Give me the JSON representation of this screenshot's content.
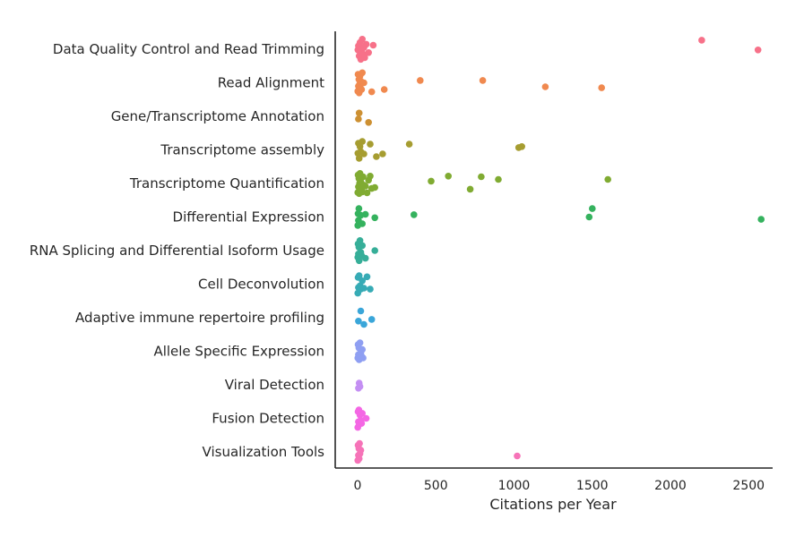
{
  "chart_data": {
    "type": "scatter",
    "title": "",
    "xlabel": "Citations per Year",
    "ylabel": "",
    "xlim": [
      -150,
      2750
    ],
    "xticks": [
      0,
      500,
      1000,
      1500,
      2000,
      2500
    ],
    "xtick_labels": [
      "0",
      "500",
      "1000",
      "1500",
      "2000",
      "2500"
    ],
    "grid": false,
    "legend": "none",
    "categories": [
      "Data Quality Control and Read Trimming",
      "Read Alignment",
      "Gene/Transcriptome Annotation",
      "Transcriptome assembly",
      "Transcriptome Quantification",
      "Differential Expression",
      "RNA Splicing and Differential Isoform Usage",
      "Cell Deconvolution",
      "Adaptive immune repertoire profiling",
      "Allele Specific Expression",
      "Viral Detection",
      "Fusion Detection",
      "Visualization Tools"
    ],
    "colors": [
      "#f77189",
      "#f0894f",
      "#cd9032",
      "#a69d31",
      "#80ab32",
      "#35b25e",
      "#36ae98",
      "#37abb5",
      "#3aa6d9",
      "#8f9ff2",
      "#c48ff3",
      "#f467e4",
      "#f673b8"
    ],
    "series": [
      {
        "category": "Data Quality Control and Read Trimming",
        "x": [
          2,
          5,
          10,
          15,
          20,
          25,
          30,
          35,
          40,
          45,
          55,
          70,
          100,
          2200,
          2560
        ],
        "jitter": [
          0.02,
          -0.1,
          0.2,
          -0.2,
          0.3,
          0.05,
          -0.3,
          0.15,
          -0.05,
          0.25,
          -0.15,
          0.1,
          -0.12,
          -0.27,
          0.02
        ]
      },
      {
        "category": "Read Alignment",
        "x": [
          1,
          3,
          5,
          8,
          10,
          12,
          15,
          18,
          20,
          25,
          30,
          40,
          90,
          170,
          400,
          800,
          1200,
          1560
        ],
        "jitter": [
          0.25,
          -0.25,
          0.1,
          -0.1,
          0.3,
          0.05,
          -0.2,
          0.15,
          -0.05,
          0.2,
          -0.3,
          0.0,
          0.27,
          0.2,
          -0.07,
          -0.07,
          0.12,
          0.15
        ]
      },
      {
        "category": "Gene/Transcriptome Annotation",
        "x": [
          5,
          10,
          70
        ],
        "jitter": [
          0.08,
          -0.1,
          0.18
        ]
      },
      {
        "category": "Transcriptome assembly",
        "x": [
          2,
          5,
          10,
          15,
          20,
          30,
          40,
          80,
          120,
          160,
          330,
          1030,
          1050
        ],
        "jitter": [
          0.1,
          -0.2,
          0.25,
          -0.1,
          0.05,
          -0.25,
          0.12,
          -0.17,
          0.2,
          0.12,
          -0.17,
          -0.07,
          -0.1
        ]
      },
      {
        "category": "Transcriptome Quantification",
        "x": [
          1,
          3,
          5,
          8,
          10,
          12,
          15,
          18,
          20,
          25,
          30,
          35,
          40,
          50,
          60,
          70,
          80,
          90,
          110,
          470,
          580,
          720,
          790,
          900,
          1600
        ],
        "jitter": [
          0.27,
          -0.25,
          0.1,
          -0.15,
          0.3,
          0.0,
          -0.3,
          0.2,
          -0.05,
          0.15,
          0.25,
          -0.2,
          0.05,
          0.08,
          0.28,
          -0.1,
          -0.22,
          0.15,
          0.12,
          -0.07,
          -0.22,
          0.17,
          -0.2,
          -0.12,
          -0.12
        ]
      },
      {
        "category": "Differential Expression",
        "x": [
          1,
          3,
          5,
          8,
          10,
          20,
          30,
          50,
          110,
          360,
          1480,
          1500,
          2580
        ],
        "jitter": [
          0.25,
          -0.1,
          0.1,
          -0.25,
          0.18,
          -0.05,
          0.2,
          -0.08,
          0.02,
          -0.07,
          0.0,
          -0.25,
          0.07
        ]
      },
      {
        "category": "RNA Splicing and Differential Isoform Usage",
        "x": [
          1,
          3,
          5,
          8,
          10,
          15,
          20,
          25,
          30,
          50,
          110
        ],
        "jitter": [
          0.2,
          -0.2,
          0.1,
          -0.1,
          0.3,
          -0.3,
          0.05,
          0.15,
          -0.15,
          0.23,
          0.0
        ]
      },
      {
        "category": "Cell Deconvolution",
        "x": [
          1,
          3,
          5,
          10,
          15,
          20,
          30,
          40,
          60,
          80
        ],
        "jitter": [
          0.27,
          -0.2,
          0.1,
          -0.25,
          0.05,
          0.15,
          -0.1,
          0.12,
          -0.22,
          0.15
        ]
      },
      {
        "category": "Adaptive immune repertoire profiling",
        "x": [
          5,
          20,
          40,
          90
        ],
        "jitter": [
          0.1,
          -0.2,
          0.2,
          0.05
        ]
      },
      {
        "category": "Allele Specific Expression",
        "x": [
          1,
          3,
          5,
          8,
          10,
          15,
          20,
          25,
          30,
          35
        ],
        "jitter": [
          0.2,
          -0.2,
          0.1,
          -0.1,
          0.25,
          -0.25,
          0.05,
          0.15,
          -0.05,
          0.2
        ]
      },
      {
        "category": "Viral Detection",
        "x": [
          5,
          10,
          15
        ],
        "jitter": [
          0.1,
          -0.05,
          0.05
        ]
      },
      {
        "category": "Fusion Detection",
        "x": [
          1,
          3,
          5,
          8,
          10,
          15,
          20,
          25,
          30,
          55
        ],
        "jitter": [
          0.27,
          -0.2,
          0.1,
          -0.25,
          0.18,
          -0.1,
          0.05,
          0.15,
          -0.15,
          0.0
        ]
      },
      {
        "category": "Visualization Tools",
        "x": [
          1,
          3,
          5,
          8,
          10,
          12,
          15,
          20,
          1020
        ],
        "jitter": [
          0.25,
          -0.2,
          0.1,
          -0.1,
          0.2,
          -0.25,
          0.05,
          -0.05,
          0.12
        ]
      }
    ]
  }
}
